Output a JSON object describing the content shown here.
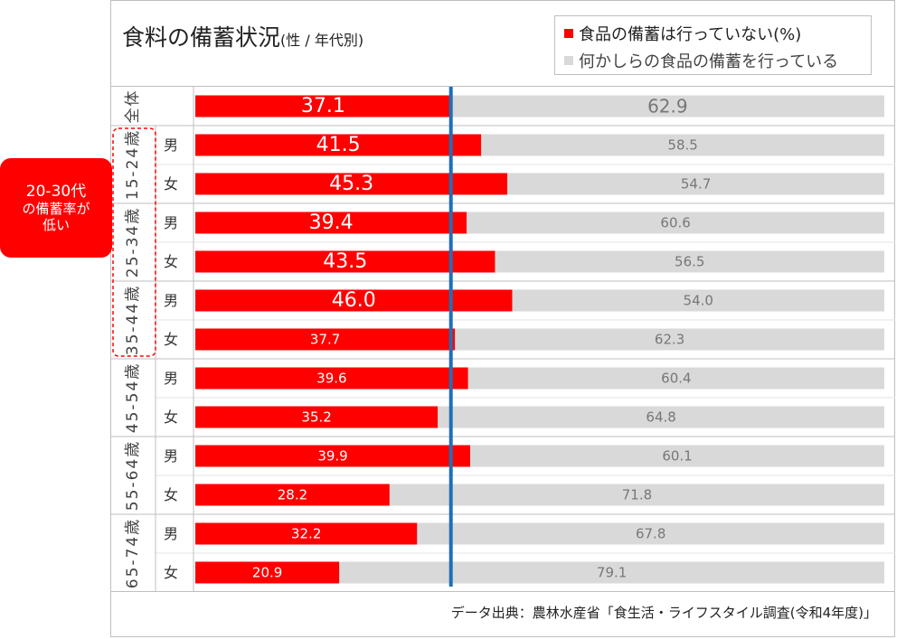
{
  "title": "食料の備蓄状況",
  "subtitle": "(性 / 年代別)",
  "legend": {
    "not_stocking": "食品の備蓄は行っていない(%)",
    "stocking": "何かしらの食品の備蓄を行っている"
  },
  "callout": {
    "line1": "20-30代",
    "line2": "の備蓄率が",
    "line3": "低い"
  },
  "source": "データ出典：農林水産省「食生活・ライフスタイル調査(令和4年度)」",
  "colors": {
    "red": "#ff0000",
    "gray": "#d9d9d9",
    "blue_line": "#1f6fb5",
    "dashed": "#ff0000"
  },
  "chart_data": {
    "type": "bar",
    "orientation": "horizontal",
    "stacked": true,
    "percent": true,
    "title": "食料の備蓄状況(性 / 年代別)",
    "reference_line": 37.1,
    "groups": [
      {
        "label": "全体",
        "rows": [
          {
            "sex": "",
            "not_stocking": 37.1,
            "stocking": 62.9
          }
        ]
      },
      {
        "label": "15-24歳",
        "rows": [
          {
            "sex": "男",
            "not_stocking": 41.5,
            "stocking": 58.5
          },
          {
            "sex": "女",
            "not_stocking": 45.3,
            "stocking": 54.7
          }
        ]
      },
      {
        "label": "25-34歳",
        "rows": [
          {
            "sex": "男",
            "not_stocking": 39.4,
            "stocking": 60.6
          },
          {
            "sex": "女",
            "not_stocking": 43.5,
            "stocking": 56.5
          }
        ]
      },
      {
        "label": "35-44歳",
        "rows": [
          {
            "sex": "男",
            "not_stocking": 46.0,
            "stocking": 54.0
          },
          {
            "sex": "女",
            "not_stocking": 37.7,
            "stocking": 62.3
          }
        ]
      },
      {
        "label": "45-54歳",
        "rows": [
          {
            "sex": "男",
            "not_stocking": 39.6,
            "stocking": 60.4
          },
          {
            "sex": "女",
            "not_stocking": 35.2,
            "stocking": 64.8
          }
        ]
      },
      {
        "label": "55-64歳",
        "rows": [
          {
            "sex": "男",
            "not_stocking": 39.9,
            "stocking": 60.1
          },
          {
            "sex": "女",
            "not_stocking": 28.2,
            "stocking": 71.8
          }
        ]
      },
      {
        "label": "65-74歳",
        "rows": [
          {
            "sex": "男",
            "not_stocking": 32.2,
            "stocking": 67.8
          },
          {
            "sex": "女",
            "not_stocking": 20.9,
            "stocking": 79.1
          }
        ]
      }
    ],
    "highlight_groups": [
      "15-24歳",
      "25-34歳",
      "35-44歳"
    ],
    "large_label_rows": [
      "全体",
      "15-24歳 男",
      "15-24歳 女",
      "25-34歳 男",
      "25-34歳 女",
      "35-44歳 男"
    ],
    "series": [
      {
        "name": "食品の備蓄は行っていない(%)",
        "key": "not_stocking"
      },
      {
        "name": "何かしらの食品の備蓄を行っている",
        "key": "stocking"
      }
    ]
  }
}
